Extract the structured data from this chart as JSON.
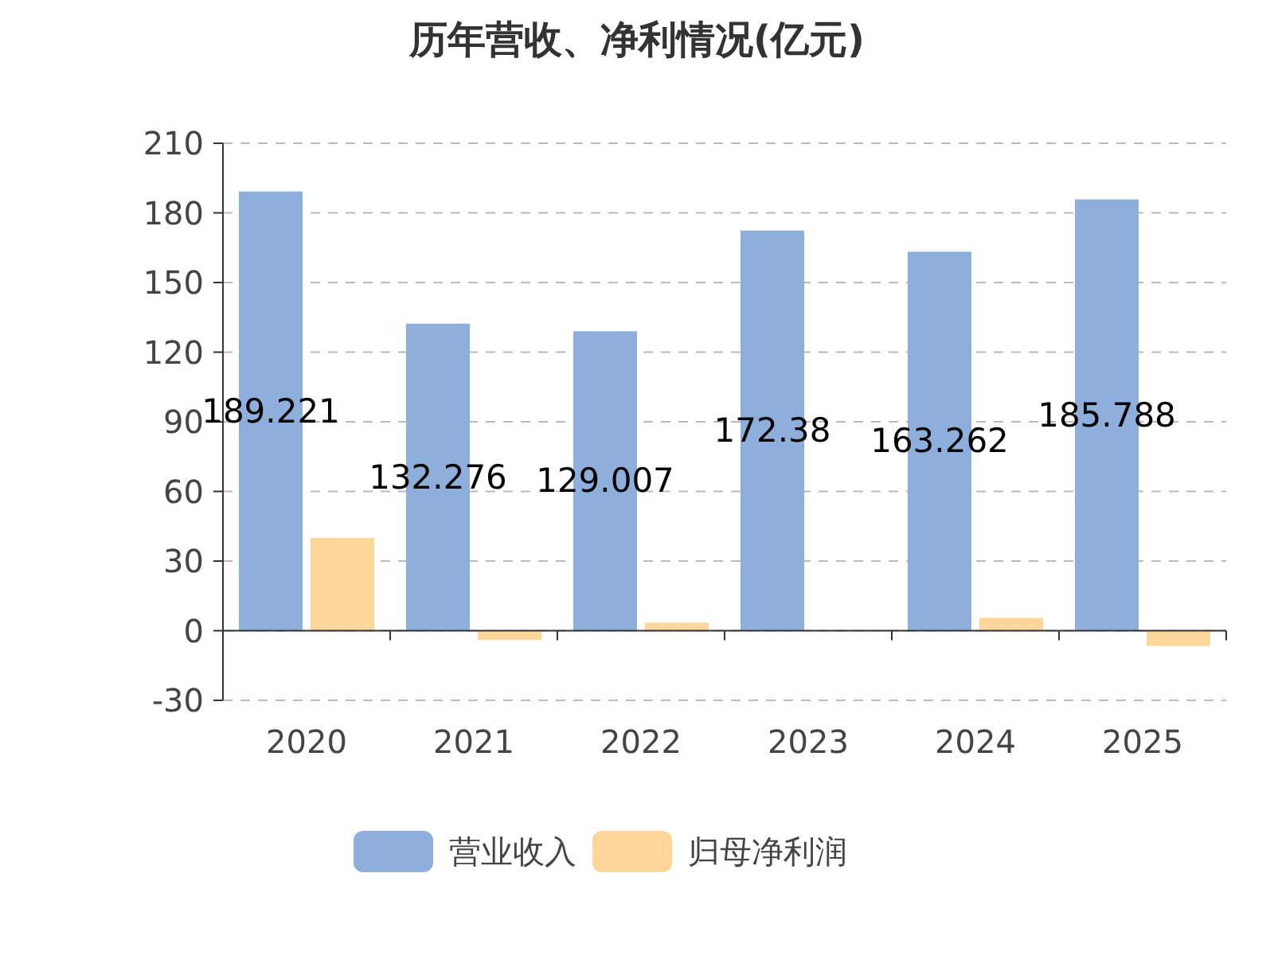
{
  "chart_data": {
    "type": "bar",
    "title": "历年营收、净利情况(亿元)",
    "categories": [
      "2020",
      "2021",
      "2022",
      "2023",
      "2024",
      "2025"
    ],
    "series": [
      {
        "name": "营业收入",
        "color": "#8eaedb",
        "values": [
          189.221,
          132.276,
          129.007,
          172.38,
          163.262,
          185.788
        ],
        "value_labels": [
          "189.221",
          "132.276",
          "129.007",
          "172.38",
          "163.262",
          "185.788"
        ]
      },
      {
        "name": "归母净利润",
        "color": "#ffd699",
        "values": [
          40,
          -4,
          3.5,
          0,
          5.5,
          -6.5
        ]
      }
    ],
    "ylim": [
      -30,
      210
    ],
    "yticks": [
      -30,
      0,
      30,
      60,
      90,
      120,
      150,
      180,
      210
    ],
    "grid": "y",
    "legend": "bottom"
  }
}
